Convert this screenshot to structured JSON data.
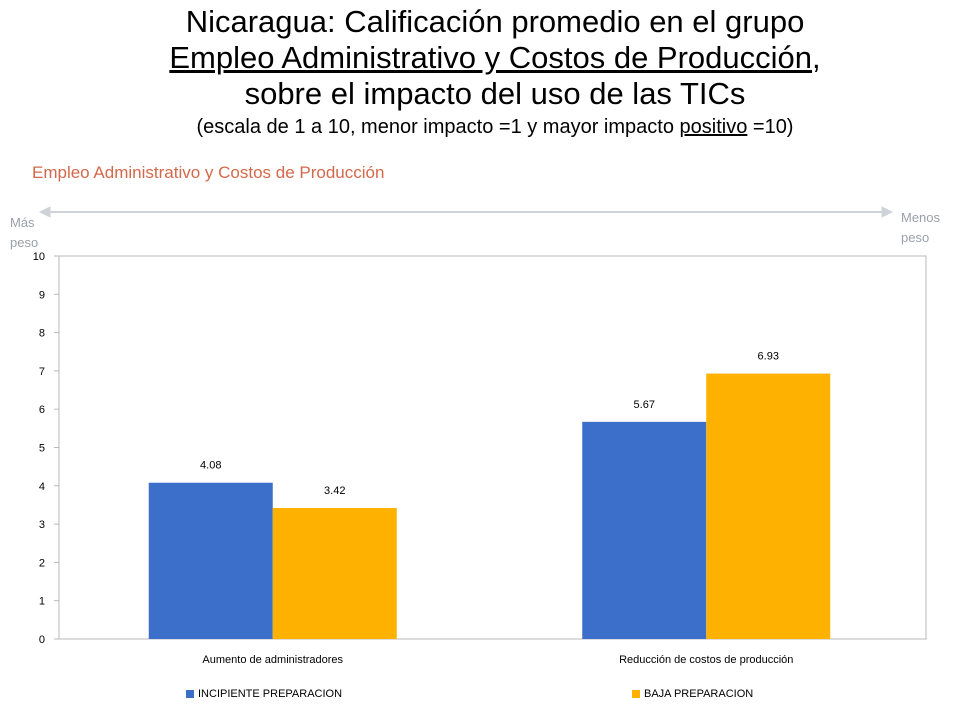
{
  "slide": {
    "title_line1": "Nicaragua: Calificación promedio en el grupo",
    "title_line2_underlined": "Empleo Administrativo y Costos de Producción",
    "title_line2_suffix": ",",
    "title_line3": "sobre el impacto del uso de las TICs",
    "subtitle_prefix": "(escala de 1 a 10, menor impacto =1 y mayor impacto ",
    "subtitle_underlined": "positivo",
    "subtitle_suffix": " =10)"
  },
  "annotations": {
    "left_label": "Más peso",
    "right_label": "Menos peso"
  },
  "chart_data": {
    "type": "bar",
    "title": "Empleo Administrativo y Costos de Producción",
    "categories": [
      "Aumento de administradores",
      "Reducción de costos de producción"
    ],
    "series": [
      {
        "name": "INCIPIENTE PREPARACION",
        "values": [
          4.08,
          5.67
        ],
        "labels": [
          "4.08",
          "5.67"
        ],
        "color": "#3b6fc9"
      },
      {
        "name": "BAJA PREPARACION",
        "values": [
          3.42,
          6.93
        ],
        "labels": [
          "3.42",
          "6.93"
        ],
        "color": "#ffb100"
      }
    ],
    "yticks": [
      "0",
      "1",
      "2",
      "3",
      "4",
      "5",
      "6",
      "7",
      "8",
      "9",
      "10"
    ],
    "ylim": [
      0,
      10
    ],
    "grid": false,
    "legend_position": "bottom"
  }
}
